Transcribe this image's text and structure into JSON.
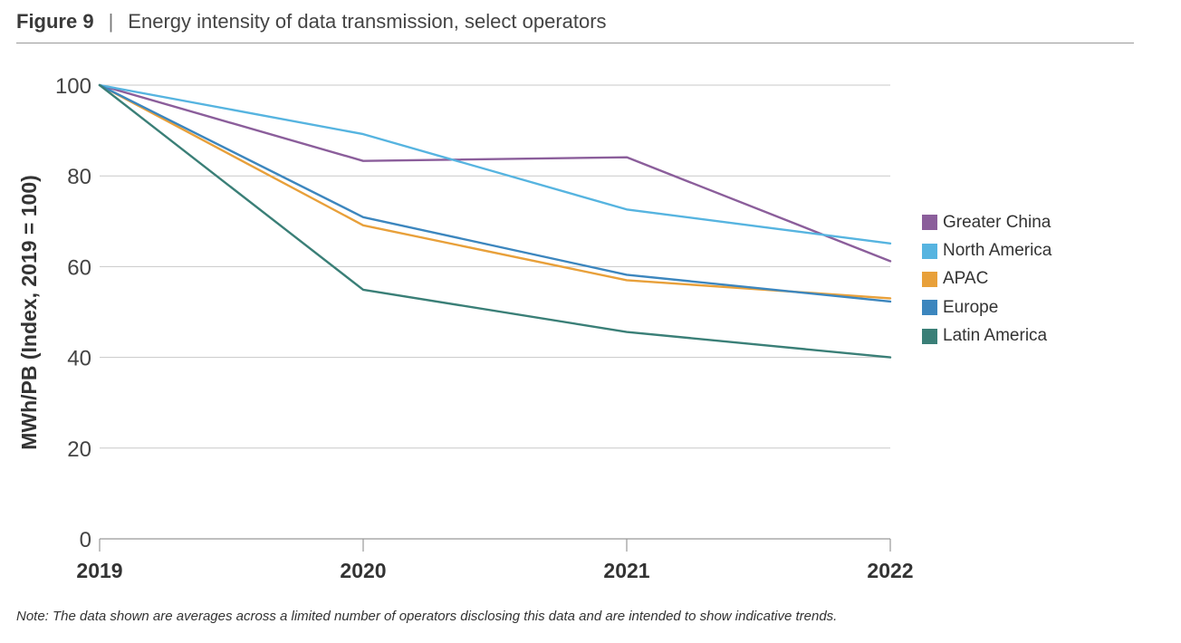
{
  "header": {
    "figure_label": "Figure 9",
    "separator": "|",
    "title": "Energy intensity of data transmission, select operators"
  },
  "note": "Note: The data shown are averages across a limited number of operators disclosing this data and are intended to show indicative trends.",
  "chart_data": {
    "type": "line",
    "title": "Energy intensity of data transmission, select operators",
    "xlabel": "",
    "ylabel": "MWh/PB (Index, 2019 = 100)",
    "x": [
      "2019",
      "2020",
      "2021",
      "2022"
    ],
    "ylim": [
      0,
      100
    ],
    "yticks": [
      0,
      20,
      40,
      60,
      80,
      100
    ],
    "grid": true,
    "legend_position": "right",
    "series": [
      {
        "name": "Greater China",
        "color": "#8B5E9B",
        "values": [
          100,
          83.3,
          84.1,
          61.2
        ]
      },
      {
        "name": "North America",
        "color": "#56B4E0",
        "values": [
          100,
          89.2,
          72.6,
          65.1
        ]
      },
      {
        "name": "APAC",
        "color": "#E8A03A",
        "values": [
          100,
          69.1,
          57.0,
          53.0
        ]
      },
      {
        "name": "Europe",
        "color": "#3C86BE",
        "values": [
          100,
          70.9,
          58.2,
          52.3
        ]
      },
      {
        "name": "Latin America",
        "color": "#3A7F77",
        "values": [
          100,
          54.9,
          45.6,
          40.0
        ]
      }
    ]
  }
}
